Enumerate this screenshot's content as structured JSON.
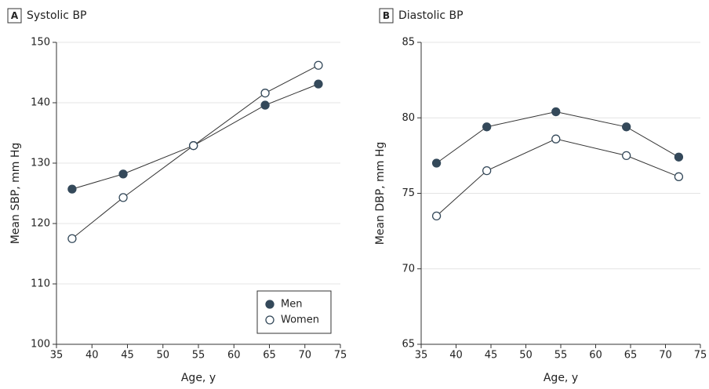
{
  "chart_data": [
    {
      "type": "line",
      "label": "A",
      "title": "Systolic BP",
      "x_label": "Age, y",
      "y_label": "Mean SBP, mm Hg",
      "x": [
        37.2,
        44.4,
        54.3,
        64.4,
        71.9
      ],
      "series": [
        {
          "name": "Men",
          "color": "#34495a",
          "values": [
            125.7,
            128.2,
            132.9,
            139.6,
            143.1
          ]
        },
        {
          "name": "Women",
          "color": "#ffffff",
          "values": [
            117.5,
            124.3,
            132.9,
            141.6,
            146.2
          ]
        }
      ],
      "xlim": [
        35,
        75
      ],
      "xticks": [
        35,
        40,
        45,
        50,
        55,
        60,
        65,
        70,
        75
      ],
      "ylim": [
        100,
        150
      ],
      "yticks": [
        100,
        110,
        120,
        130,
        140,
        150
      ],
      "grid": true,
      "legend": "lower right"
    },
    {
      "type": "line",
      "label": "B",
      "title": "Diastolic BP",
      "x_label": "Age, y",
      "y_label": "Mean DBP, mm Hg",
      "x": [
        37.2,
        44.4,
        54.3,
        64.4,
        71.9
      ],
      "series": [
        {
          "color": "#34495a",
          "values": [
            77.0,
            79.4,
            80.4,
            79.4,
            77.4
          ]
        },
        {
          "color": "#ffffff",
          "values": [
            73.5,
            76.5,
            78.6,
            77.5,
            76.1
          ]
        }
      ],
      "xlim": [
        35,
        75
      ],
      "xticks": [
        35,
        40,
        45,
        50,
        55,
        60,
        65,
        70,
        75
      ],
      "ylim": [
        65,
        85
      ],
      "yticks": [
        65,
        70,
        75,
        80,
        85
      ],
      "grid": true
    }
  ]
}
